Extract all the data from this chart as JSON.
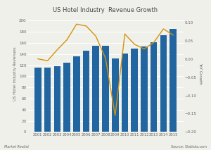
{
  "title": "US Hotel Industry  Revenue Growth",
  "years": [
    2001,
    2002,
    2003,
    2004,
    2005,
    2006,
    2007,
    2008,
    2009,
    2010,
    2011,
    2012,
    2013,
    2014,
    2015
  ],
  "revenues": [
    116,
    115,
    118,
    124,
    136,
    146,
    155,
    155,
    132,
    141,
    150,
    154,
    161,
    174,
    185
  ],
  "yoy_growth": [
    0.0,
    -0.005,
    0.025,
    0.052,
    0.095,
    0.09,
    0.062,
    0.002,
    -0.155,
    0.068,
    0.04,
    0.027,
    0.045,
    0.082,
    0.065
  ],
  "bar_color": "#2166a0",
  "line_color": "#D4930A",
  "ylabel_left": "US Hotel Industry Revenues",
  "ylabel_right": "YoY Growth",
  "ylim_left": [
    0,
    210
  ],
  "ylim_right": [
    -0.2,
    0.12
  ],
  "yticks_left": [
    0,
    20,
    40,
    60,
    80,
    100,
    120,
    140,
    160,
    180,
    200
  ],
  "yticks_right": [
    -0.2,
    -0.15,
    -0.1,
    -0.05,
    0,
    0.05,
    0.1
  ],
  "bg_color": "#f0f0eb",
  "grid_color": "#ffffff",
  "label_left": "Market Realist",
  "label_right": "Source: Statista.com",
  "title_color": "#444444",
  "tick_color": "#666666",
  "label_color": "#666666"
}
